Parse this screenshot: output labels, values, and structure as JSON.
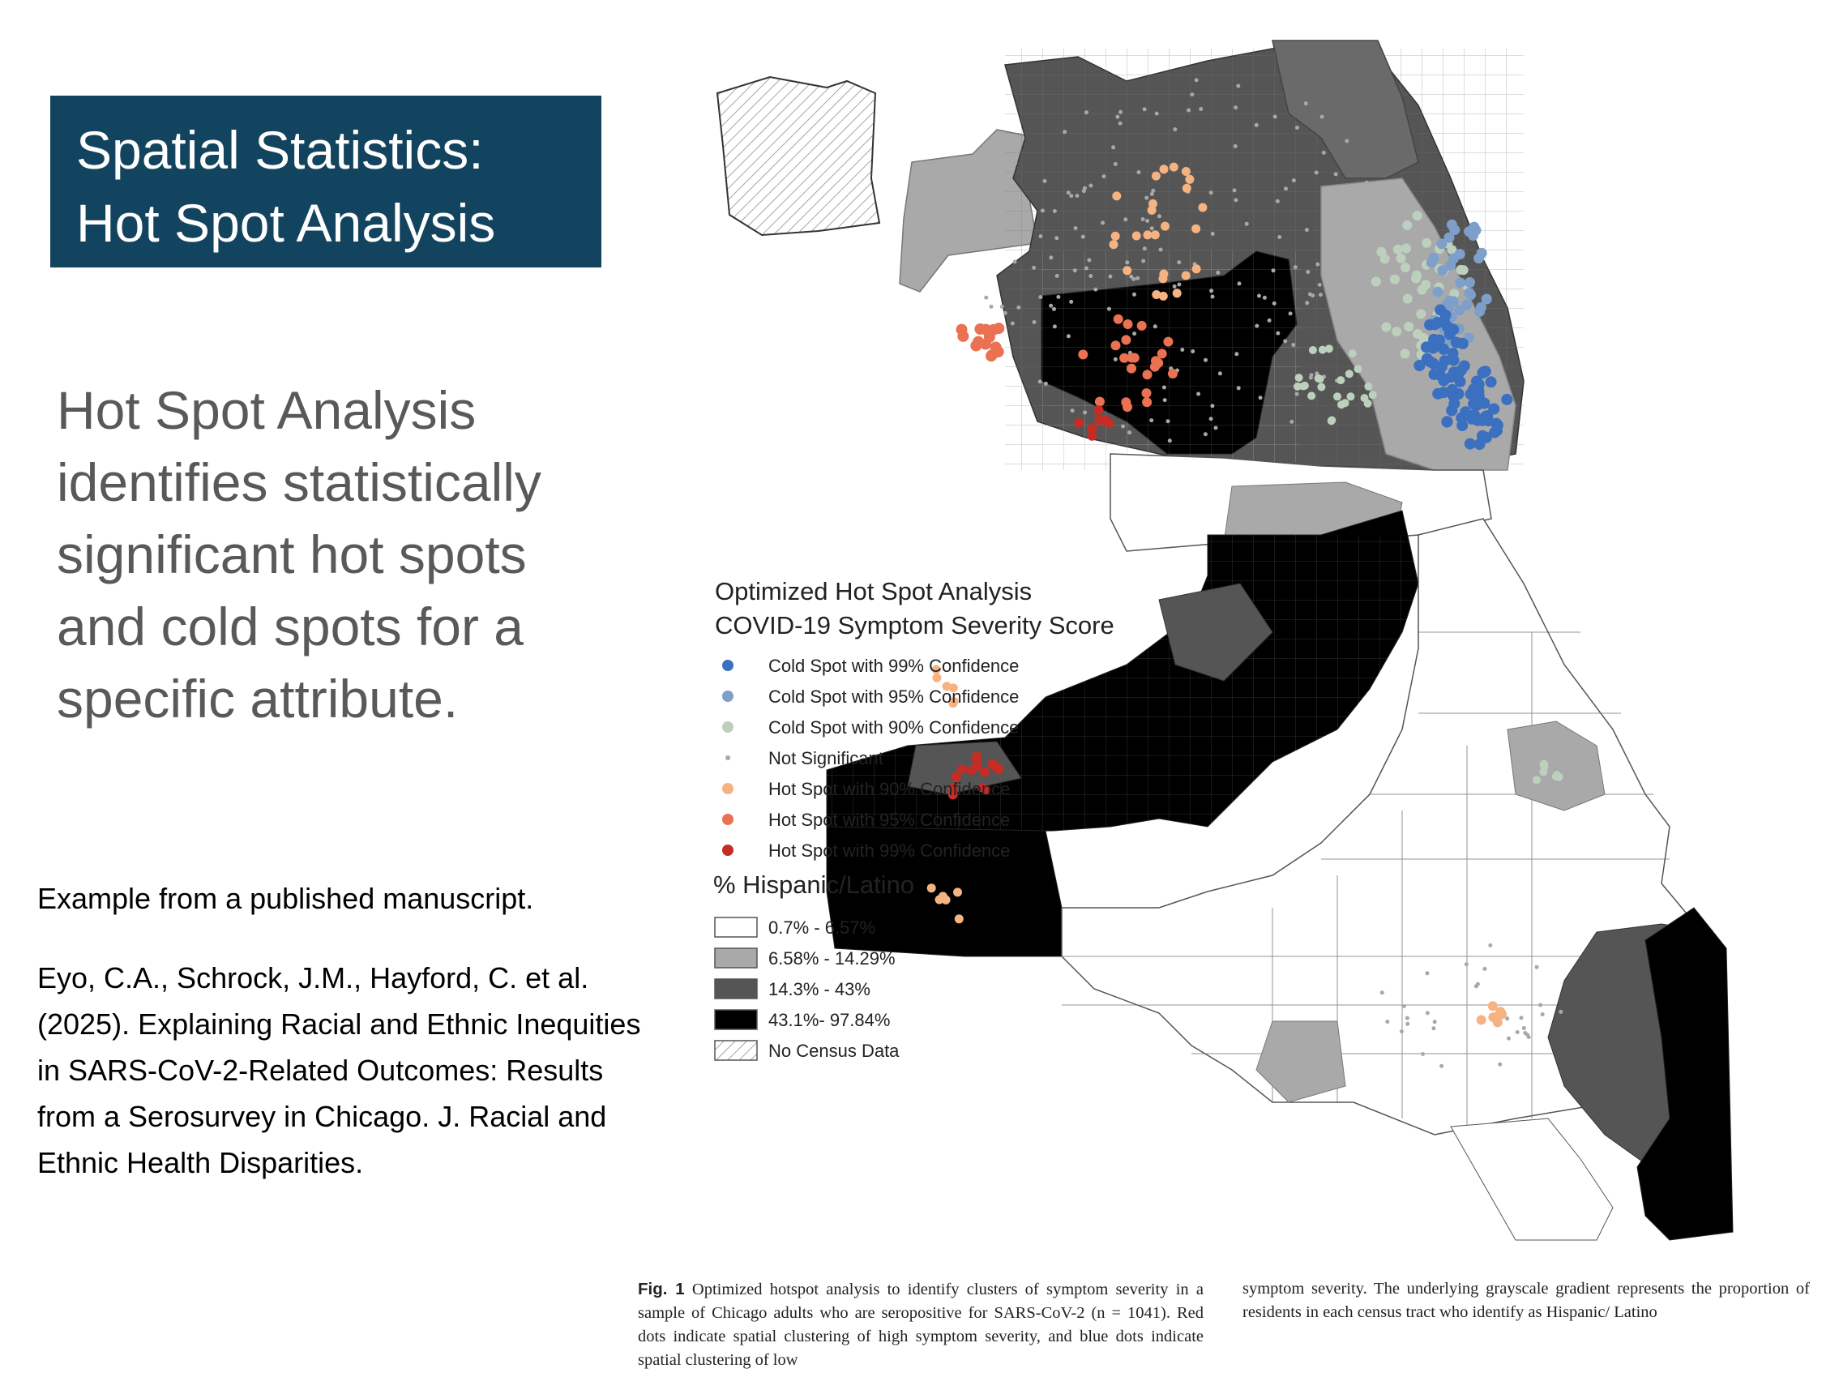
{
  "slide": {
    "title_lines": [
      "Spatial Statistics:",
      "Hot Spot Analysis"
    ],
    "lead_text": "Hot Spot Analysis identifies statistically significant hot spots and cold spots for a specific attribute.",
    "example_text": "Example from a published manuscript.",
    "citation_text": "Eyo, C.A., Schrock, J.M., Hayford, C. et al. (2025). Explaining Racial and Ethnic Inequities in SARS-CoV-2-Related Outcomes: Results from a Serosurvey in Chicago. J. Racial and Ethnic Health Disparities.",
    "colors": {
      "title_bg": "#13445f",
      "lead_text": "#595959"
    }
  },
  "map": {
    "legend": {
      "title_line1": "Optimized Hot Spot Analysis",
      "title_line2": "COVID-19 Symptom Severity Score",
      "points": [
        {
          "label": "Cold Spot with 99% Confidence",
          "color": "#3b6fbf"
        },
        {
          "label": "Cold Spot with 95% Confidence",
          "color": "#7e9fc9"
        },
        {
          "label": "Cold Spot with 90% Confidence",
          "color": "#bdd0bd"
        },
        {
          "label": "Not Significant",
          "color": "#a8a8a8"
        },
        {
          "label": "Hot Spot with 90% Confidence",
          "color": "#f5b382"
        },
        {
          "label": "Hot Spot with 95% Confidence",
          "color": "#ea7151"
        },
        {
          "label": "Hot Spot with 99% Confidence",
          "color": "#c62c26"
        }
      ],
      "fill_title": "% Hispanic/Latino",
      "fills": [
        {
          "label": "0.7% - 6.57%",
          "color": "#ffffff"
        },
        {
          "label": "6.58% - 14.29%",
          "color": "#a9a9a9"
        },
        {
          "label": "14.3% - 43%",
          "color": "#555555"
        },
        {
          "label": "43.1%- 97.84%",
          "color": "#000000"
        },
        {
          "label": "No Census Data",
          "color": "hatched"
        }
      ]
    }
  },
  "caption": {
    "fig_label": "Fig. 1",
    "left_text": "Optimized hotspot analysis to identify clusters of symptom severity in a sample of Chicago adults who are seropositive for SARS-CoV-2 (n = 1041). Red dots indicate spatial clustering of high symptom severity, and blue dots indicate spatial clustering of low",
    "right_text": "symptom severity. The underlying grayscale gradient represents the proportion of residents in each census tract who identify as Hispanic/ Latino"
  }
}
